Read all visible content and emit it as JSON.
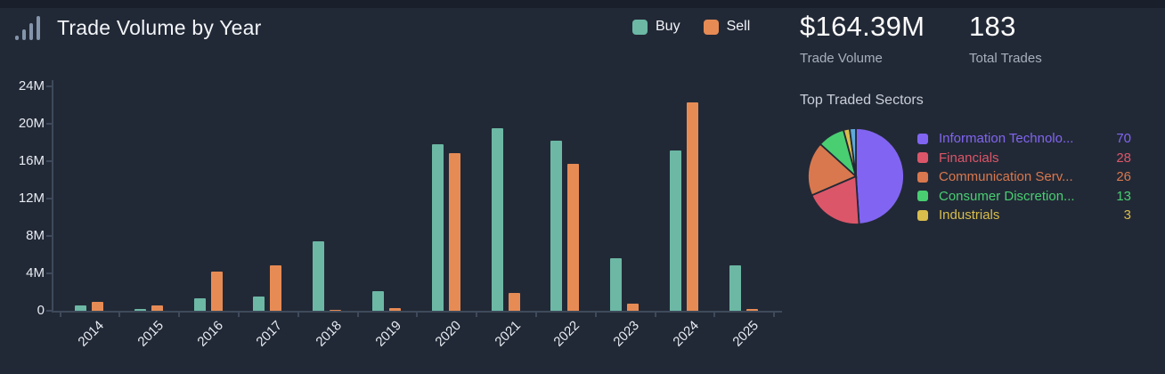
{
  "header": {
    "title": "Trade Volume by Year"
  },
  "series_legend": {
    "buy": "Buy",
    "sell": "Sell"
  },
  "stats": [
    {
      "value": "$164.39M",
      "label": "Trade Volume"
    },
    {
      "value": "183",
      "label": "Total Trades"
    }
  ],
  "sectors": {
    "title": "Top Traded Sectors",
    "items": [
      {
        "label": "Information Technolo...",
        "value": 70,
        "color": "#8165f2"
      },
      {
        "label": "Financials",
        "value": 28,
        "color": "#dc5669"
      },
      {
        "label": "Communication Serv...",
        "value": 26,
        "color": "#d9784e"
      },
      {
        "label": "Consumer Discretion...",
        "value": 13,
        "color": "#49ce72"
      },
      {
        "label": "Industrials",
        "value": 3,
        "color": "#d8bd4c"
      }
    ]
  },
  "chart_data": [
    {
      "type": "bar",
      "title": "Trade Volume by Year",
      "categories": [
        "2014",
        "2015",
        "2016",
        "2017",
        "2018",
        "2019",
        "2020",
        "2021",
        "2022",
        "2023",
        "2024",
        "2025"
      ],
      "series": [
        {
          "name": "Buy",
          "color": "#6cb8a5",
          "values_millions": [
            0.55,
            0.2,
            1.3,
            1.5,
            7.4,
            2.1,
            17.8,
            19.5,
            18.2,
            5.6,
            17.1,
            4.9
          ]
        },
        {
          "name": "Sell",
          "color": "#e78b55",
          "values_millions": [
            0.95,
            0.6,
            4.2,
            4.9,
            0.05,
            0.3,
            16.9,
            1.9,
            15.7,
            0.8,
            22.3,
            0.2
          ]
        }
      ],
      "ylim_millions": [
        0,
        24
      ],
      "ytick_labels": [
        "0",
        "4M",
        "8M",
        "12M",
        "16M",
        "20M",
        "24M"
      ],
      "grid": "off",
      "legend_position": "top-right"
    },
    {
      "type": "pie",
      "title": "Top Traded Sectors",
      "slices": [
        {
          "label": "Information Technolo...",
          "value": 70,
          "color": "#8165f2"
        },
        {
          "label": "Financials",
          "value": 28,
          "color": "#dc5669"
        },
        {
          "label": "Communication Serv...",
          "value": 26,
          "color": "#d9784e"
        },
        {
          "label": "Consumer Discretion...",
          "value": 13,
          "color": "#49ce72"
        },
        {
          "label": "Industrials",
          "value": 3,
          "color": "#d8bd4c"
        },
        {
          "label": "",
          "value": 3,
          "color": "#5ea9d9"
        }
      ],
      "start_angle": "top",
      "direction": "clockwise",
      "legend_position": "right"
    }
  ]
}
